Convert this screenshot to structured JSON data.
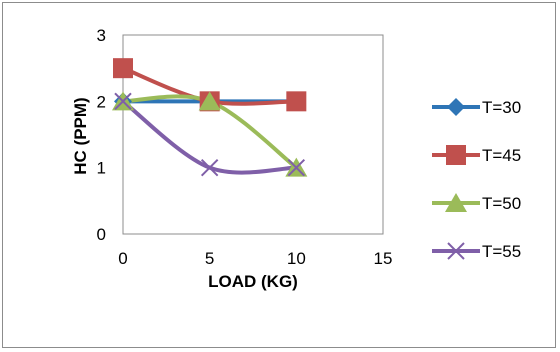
{
  "chart_data": {
    "type": "line",
    "title": "",
    "xlabel": "LOAD (KG)",
    "ylabel": "HC (PPM)",
    "xlim": [
      0,
      15
    ],
    "ylim": [
      0,
      3
    ],
    "xticks": [
      "0",
      "5",
      "10",
      "15"
    ],
    "yticks": [
      "0",
      "1",
      "2",
      "3"
    ],
    "grid": false,
    "legend_position": "right",
    "x": [
      0,
      5,
      10
    ],
    "series": [
      {
        "name": "T=30",
        "values": [
          2,
          2,
          2
        ],
        "color": "#2e75b6",
        "marker": "diamond"
      },
      {
        "name": "T=45",
        "values": [
          2.5,
          2,
          2
        ],
        "color": "#c0504d",
        "marker": "square"
      },
      {
        "name": "T=50",
        "values": [
          2,
          2,
          1
        ],
        "color": "#9bbb59",
        "marker": "triangle"
      },
      {
        "name": "T=55",
        "values": [
          2,
          1,
          1
        ],
        "color": "#7f5fa8",
        "marker": "x"
      }
    ]
  }
}
